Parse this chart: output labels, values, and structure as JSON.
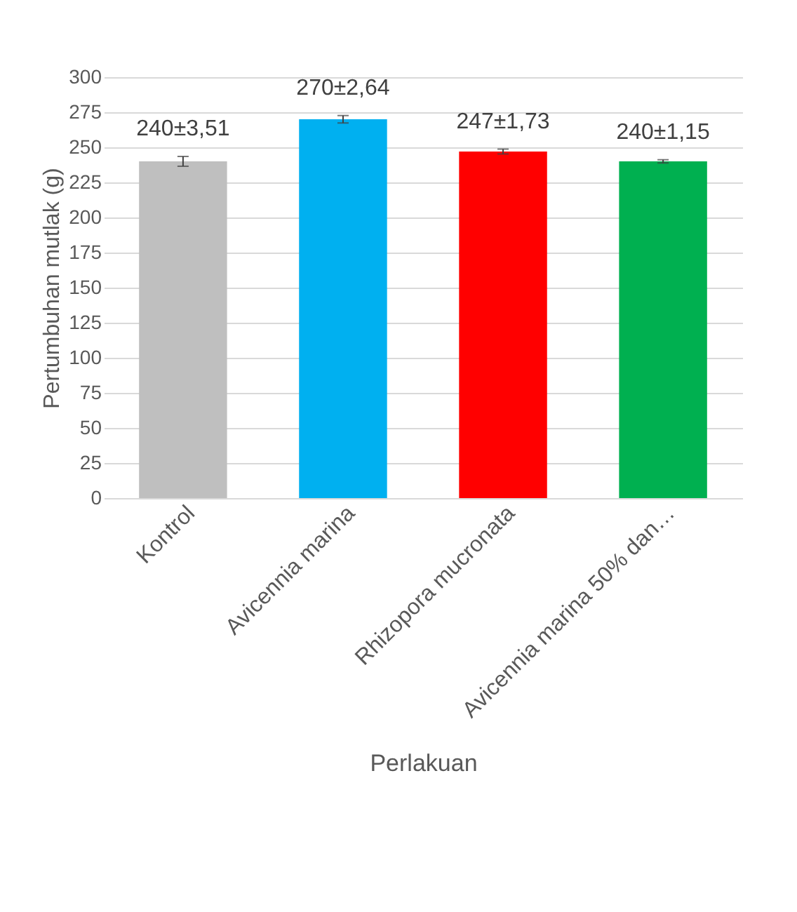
{
  "chart_data": {
    "type": "bar",
    "xlabel": "Perlakuan",
    "ylabel": "Pertumbuhan mutlak (g)",
    "categories": [
      "Kontrol",
      "Avicennia marina",
      "Rhizopora mucronata",
      "Avicennia marina 50% dan…"
    ],
    "values": [
      240,
      270,
      247,
      240
    ],
    "colors": [
      "#bfbfbf",
      "#00b0f0",
      "#ff0000",
      "#00b050"
    ],
    "errors": [
      3.51,
      2.64,
      1.73,
      1.15
    ],
    "value_labels": [
      "240±3,51",
      "270±2,64",
      "247±1,73",
      "240±1,15"
    ],
    "ylim": [
      0,
      300
    ],
    "yticks": [
      0,
      25,
      50,
      75,
      100,
      125,
      150,
      175,
      200,
      225,
      250,
      275,
      300
    ],
    "grid": "y"
  }
}
